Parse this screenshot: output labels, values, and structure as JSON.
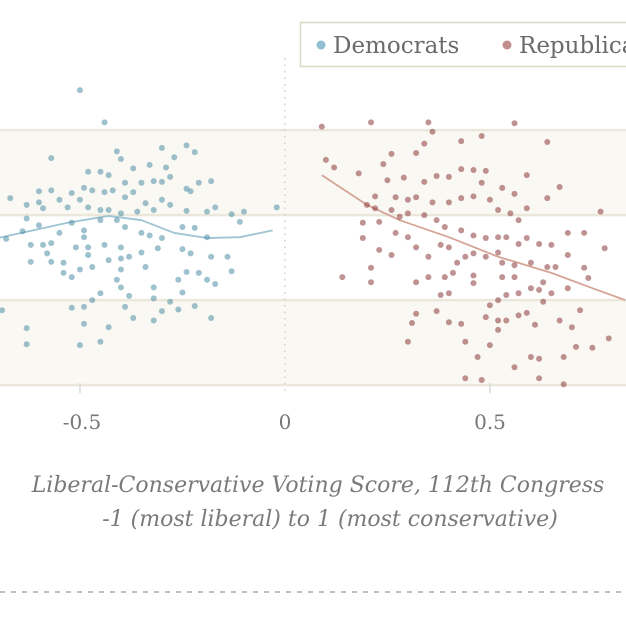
{
  "chart_data": {
    "type": "scatter",
    "xlabel": "Liberal-Conservative Voting Score, 112th Congress",
    "xlabel_line2": "-1 (most liberal) to 1 (most conservative)",
    "xticks": [
      -0.5,
      0,
      0.5
    ],
    "xtick_labels": [
      "-0.5",
      "0",
      "0.5"
    ],
    "xlim": [
      -0.695,
      0.832
    ],
    "ylim": [
      -2.81,
      4.53
    ],
    "grid": "horizontal bands",
    "legend_position": "top-right",
    "colors": {
      "Democrats": "#4f8ea5",
      "Republicans": "#8b3b3b",
      "band": "#faf8f3",
      "gridline": "#ebe7da"
    },
    "series": [
      {
        "name": "Democrats",
        "points": [
          [
            -0.44,
            3.09
          ],
          [
            -0.5,
            3.47
          ],
          [
            -0.57,
            2.67
          ],
          [
            -0.41,
            2.75
          ],
          [
            -0.4,
            2.66
          ],
          [
            -0.3,
            2.79
          ],
          [
            -0.24,
            2.82
          ],
          [
            -0.22,
            2.74
          ],
          [
            -0.27,
            2.68
          ],
          [
            -0.33,
            2.59
          ],
          [
            -0.29,
            2.56
          ],
          [
            -0.37,
            2.55
          ],
          [
            -0.48,
            2.51
          ],
          [
            -0.45,
            2.51
          ],
          [
            -0.43,
            2.47
          ],
          [
            -0.39,
            2.38
          ],
          [
            -0.35,
            2.38
          ],
          [
            -0.32,
            2.4
          ],
          [
            -0.3,
            2.39
          ],
          [
            -0.28,
            2.45
          ],
          [
            -0.18,
            2.4
          ],
          [
            -0.21,
            2.38
          ],
          [
            -0.24,
            2.31
          ],
          [
            -0.23,
            2.28
          ],
          [
            -0.6,
            2.28
          ],
          [
            -0.57,
            2.29
          ],
          [
            -0.67,
            2.2
          ],
          [
            -0.52,
            2.26
          ],
          [
            -0.49,
            2.32
          ],
          [
            -0.47,
            2.29
          ],
          [
            -0.44,
            2.27
          ],
          [
            -0.42,
            2.29
          ],
          [
            -0.37,
            2.27
          ],
          [
            -0.39,
            2.21
          ],
          [
            -0.34,
            2.14
          ],
          [
            -0.3,
            2.18
          ],
          [
            -0.28,
            2.12
          ],
          [
            -0.63,
            2.12
          ],
          [
            -0.6,
            2.15
          ],
          [
            -0.59,
            2.08
          ],
          [
            -0.55,
            2.18
          ],
          [
            -0.53,
            2.09
          ],
          [
            -0.5,
            2.18
          ],
          [
            -0.48,
            2.09
          ],
          [
            -0.45,
            2.06
          ],
          [
            -0.43,
            2.06
          ],
          [
            -0.4,
            2.02
          ],
          [
            -0.36,
            2.04
          ],
          [
            -0.32,
            2.06
          ],
          [
            -0.24,
            2.05
          ],
          [
            -0.19,
            2.04
          ],
          [
            -0.17,
            2.09
          ],
          [
            -0.13,
            2.01
          ],
          [
            -0.1,
            2.04
          ],
          [
            -0.02,
            2.09
          ],
          [
            -0.11,
            1.92
          ],
          [
            -0.63,
            1.96
          ],
          [
            -0.6,
            1.88
          ],
          [
            -0.64,
            1.81
          ],
          [
            -0.68,
            1.72
          ],
          [
            -0.55,
            1.79
          ],
          [
            -0.52,
            1.91
          ],
          [
            -0.49,
            1.82
          ],
          [
            -0.49,
            1.74
          ],
          [
            -0.45,
            1.94
          ],
          [
            -0.41,
            1.94
          ],
          [
            -0.39,
            1.86
          ],
          [
            -0.35,
            1.79
          ],
          [
            -0.33,
            1.76
          ],
          [
            -0.3,
            1.73
          ],
          [
            -0.25,
            1.86
          ],
          [
            -0.22,
            1.85
          ],
          [
            -0.19,
            1.74
          ],
          [
            -0.62,
            1.65
          ],
          [
            -0.59,
            1.65
          ],
          [
            -0.57,
            1.67
          ],
          [
            -0.58,
            1.55
          ],
          [
            -0.62,
            1.45
          ],
          [
            -0.57,
            1.45
          ],
          [
            -0.54,
            1.44
          ],
          [
            -0.51,
            1.62
          ],
          [
            -0.48,
            1.62
          ],
          [
            -0.44,
            1.65
          ],
          [
            -0.4,
            1.62
          ],
          [
            -0.48,
            1.53
          ],
          [
            -0.43,
            1.47
          ],
          [
            -0.4,
            1.49
          ],
          [
            -0.38,
            1.51
          ],
          [
            -0.35,
            1.56
          ],
          [
            -0.31,
            1.61
          ],
          [
            -0.25,
            1.6
          ],
          [
            -0.23,
            1.55
          ],
          [
            -0.18,
            1.51
          ],
          [
            -0.14,
            1.51
          ],
          [
            -0.5,
            1.36
          ],
          [
            -0.47,
            1.39
          ],
          [
            -0.4,
            1.36
          ],
          [
            -0.34,
            1.39
          ],
          [
            -0.54,
            1.32
          ],
          [
            -0.52,
            1.27
          ],
          [
            -0.41,
            1.24
          ],
          [
            -0.32,
            1.15
          ],
          [
            -0.26,
            1.24
          ],
          [
            -0.24,
            1.33
          ],
          [
            -0.21,
            1.32
          ],
          [
            -0.19,
            1.24
          ],
          [
            -0.17,
            1.19
          ],
          [
            -0.13,
            1.34
          ],
          [
            -0.4,
            1.15
          ],
          [
            -0.38,
            1.05
          ],
          [
            -0.45,
            1.08
          ],
          [
            -0.47,
            1.0
          ],
          [
            -0.32,
            1.02
          ],
          [
            -0.28,
            0.98
          ],
          [
            -0.25,
            1.09
          ],
          [
            -0.52,
            0.91
          ],
          [
            -0.49,
            0.92
          ],
          [
            -0.39,
            0.92
          ],
          [
            -0.37,
            0.79
          ],
          [
            -0.32,
            0.76
          ],
          [
            -0.3,
            0.87
          ],
          [
            -0.26,
            0.89
          ],
          [
            -0.22,
            0.93
          ],
          [
            -0.18,
            0.79
          ],
          [
            -0.49,
            0.72
          ],
          [
            -0.43,
            0.68
          ],
          [
            -0.63,
            0.67
          ],
          [
            -0.63,
            0.48
          ],
          [
            -0.5,
            0.47
          ],
          [
            -0.45,
            0.51
          ],
          [
            -0.69,
            0.88
          ]
        ],
        "trend": [
          [
            -0.7,
            1.73
          ],
          [
            -0.53,
            1.91
          ],
          [
            -0.43,
            1.99
          ],
          [
            -0.35,
            1.94
          ],
          [
            -0.27,
            1.79
          ],
          [
            -0.19,
            1.73
          ],
          [
            -0.11,
            1.74
          ],
          [
            -0.03,
            1.82
          ]
        ]
      },
      {
        "name": "Republicans",
        "points": [
          [
            0.09,
            3.04
          ],
          [
            0.21,
            3.09
          ],
          [
            0.35,
            3.09
          ],
          [
            0.56,
            3.08
          ],
          [
            0.36,
            2.98
          ],
          [
            0.43,
            2.87
          ],
          [
            0.48,
            2.93
          ],
          [
            0.64,
            2.86
          ],
          [
            0.34,
            2.84
          ],
          [
            0.32,
            2.73
          ],
          [
            0.26,
            2.72
          ],
          [
            0.1,
            2.65
          ],
          [
            0.12,
            2.56
          ],
          [
            0.18,
            2.49
          ],
          [
            0.24,
            2.6
          ],
          [
            0.25,
            2.41
          ],
          [
            0.29,
            2.44
          ],
          [
            0.34,
            2.39
          ],
          [
            0.37,
            2.46
          ],
          [
            0.4,
            2.45
          ],
          [
            0.43,
            2.54
          ],
          [
            0.46,
            2.53
          ],
          [
            0.49,
            2.52
          ],
          [
            0.48,
            2.38
          ],
          [
            0.59,
            2.47
          ],
          [
            0.53,
            2.32
          ],
          [
            0.67,
            2.33
          ],
          [
            0.64,
            2.2
          ],
          [
            0.22,
            2.22
          ],
          [
            0.27,
            2.21
          ],
          [
            0.3,
            2.18
          ],
          [
            0.32,
            2.21
          ],
          [
            0.36,
            2.15
          ],
          [
            0.4,
            2.15
          ],
          [
            0.43,
            2.2
          ],
          [
            0.46,
            2.22
          ],
          [
            0.5,
            2.18
          ],
          [
            0.56,
            2.25
          ],
          [
            0.59,
            2.08
          ],
          [
            0.52,
            2.06
          ],
          [
            0.55,
            2.02
          ],
          [
            0.57,
            1.94
          ],
          [
            0.2,
            2.12
          ],
          [
            0.22,
            2.08
          ],
          [
            0.26,
            2.06
          ],
          [
            0.28,
            1.98
          ],
          [
            0.19,
            1.91
          ],
          [
            0.23,
            1.92
          ],
          [
            0.3,
            2.02
          ],
          [
            0.34,
            2.0
          ],
          [
            0.37,
            1.94
          ],
          [
            0.39,
            1.86
          ],
          [
            0.43,
            1.82
          ],
          [
            0.46,
            1.76
          ],
          [
            0.49,
            1.73
          ],
          [
            0.52,
            1.74
          ],
          [
            0.54,
            1.74
          ],
          [
            0.57,
            1.66
          ],
          [
            0.59,
            1.73
          ],
          [
            0.62,
            1.66
          ],
          [
            0.65,
            1.65
          ],
          [
            0.69,
            1.79
          ],
          [
            0.73,
            1.79
          ],
          [
            0.77,
            2.04
          ],
          [
            0.78,
            1.61
          ],
          [
            0.19,
            1.73
          ],
          [
            0.23,
            1.59
          ],
          [
            0.26,
            1.53
          ],
          [
            0.27,
            1.79
          ],
          [
            0.3,
            1.74
          ],
          [
            0.32,
            1.62
          ],
          [
            0.35,
            1.51
          ],
          [
            0.38,
            1.65
          ],
          [
            0.4,
            1.62
          ],
          [
            0.42,
            1.44
          ],
          [
            0.44,
            1.51
          ],
          [
            0.46,
            1.55
          ],
          [
            0.49,
            1.51
          ],
          [
            0.52,
            1.56
          ],
          [
            0.53,
            1.44
          ],
          [
            0.56,
            1.41
          ],
          [
            0.6,
            1.44
          ],
          [
            0.64,
            1.39
          ],
          [
            0.66,
            1.39
          ],
          [
            0.69,
            1.53
          ],
          [
            0.73,
            1.38
          ],
          [
            0.74,
            1.26
          ],
          [
            0.21,
            1.38
          ],
          [
            0.21,
            1.21
          ],
          [
            0.14,
            1.27
          ],
          [
            0.32,
            1.21
          ],
          [
            0.35,
            1.27
          ],
          [
            0.39,
            1.27
          ],
          [
            0.41,
            1.32
          ],
          [
            0.46,
            1.29
          ],
          [
            0.46,
            1.2
          ],
          [
            0.53,
            1.27
          ],
          [
            0.56,
            1.27
          ],
          [
            0.6,
            1.14
          ],
          [
            0.62,
            1.12
          ],
          [
            0.63,
            1.21
          ],
          [
            0.65,
            1.08
          ],
          [
            0.69,
            1.14
          ],
          [
            0.38,
            1.06
          ],
          [
            0.4,
            1.08
          ],
          [
            0.5,
            0.94
          ],
          [
            0.52,
            1.0
          ],
          [
            0.54,
            1.06
          ],
          [
            0.63,
            0.98
          ],
          [
            0.57,
            1.08
          ],
          [
            0.32,
            0.84
          ],
          [
            0.37,
            0.87
          ],
          [
            0.31,
            0.73
          ],
          [
            0.4,
            0.74
          ],
          [
            0.43,
            0.72
          ],
          [
            0.49,
            0.8
          ],
          [
            0.52,
            0.76
          ],
          [
            0.52,
            0.65
          ],
          [
            0.54,
            0.76
          ],
          [
            0.57,
            0.82
          ],
          [
            0.59,
            0.85
          ],
          [
            0.61,
            0.71
          ],
          [
            0.67,
            0.76
          ],
          [
            0.7,
            0.68
          ],
          [
            0.72,
            0.88
          ],
          [
            0.3,
            0.51
          ],
          [
            0.44,
            0.51
          ],
          [
            0.5,
            0.47
          ],
          [
            0.71,
            0.45
          ],
          [
            0.75,
            0.44
          ],
          [
            0.79,
            0.55
          ],
          [
            0.47,
            0.33
          ],
          [
            0.56,
            0.21
          ],
          [
            0.6,
            0.33
          ],
          [
            0.62,
            0.31
          ],
          [
            0.68,
            0.33
          ],
          [
            0.44,
            0.08
          ],
          [
            0.48,
            0.06
          ],
          [
            0.62,
            0.08
          ],
          [
            0.68,
            0.01
          ]
        ],
        "trend": [
          [
            0.09,
            2.47
          ],
          [
            0.2,
            2.12
          ],
          [
            0.28,
            1.94
          ],
          [
            0.4,
            1.74
          ],
          [
            0.52,
            1.51
          ],
          [
            0.65,
            1.32
          ],
          [
            0.75,
            1.14
          ],
          [
            0.83,
            1.0
          ]
        ]
      }
    ]
  }
}
